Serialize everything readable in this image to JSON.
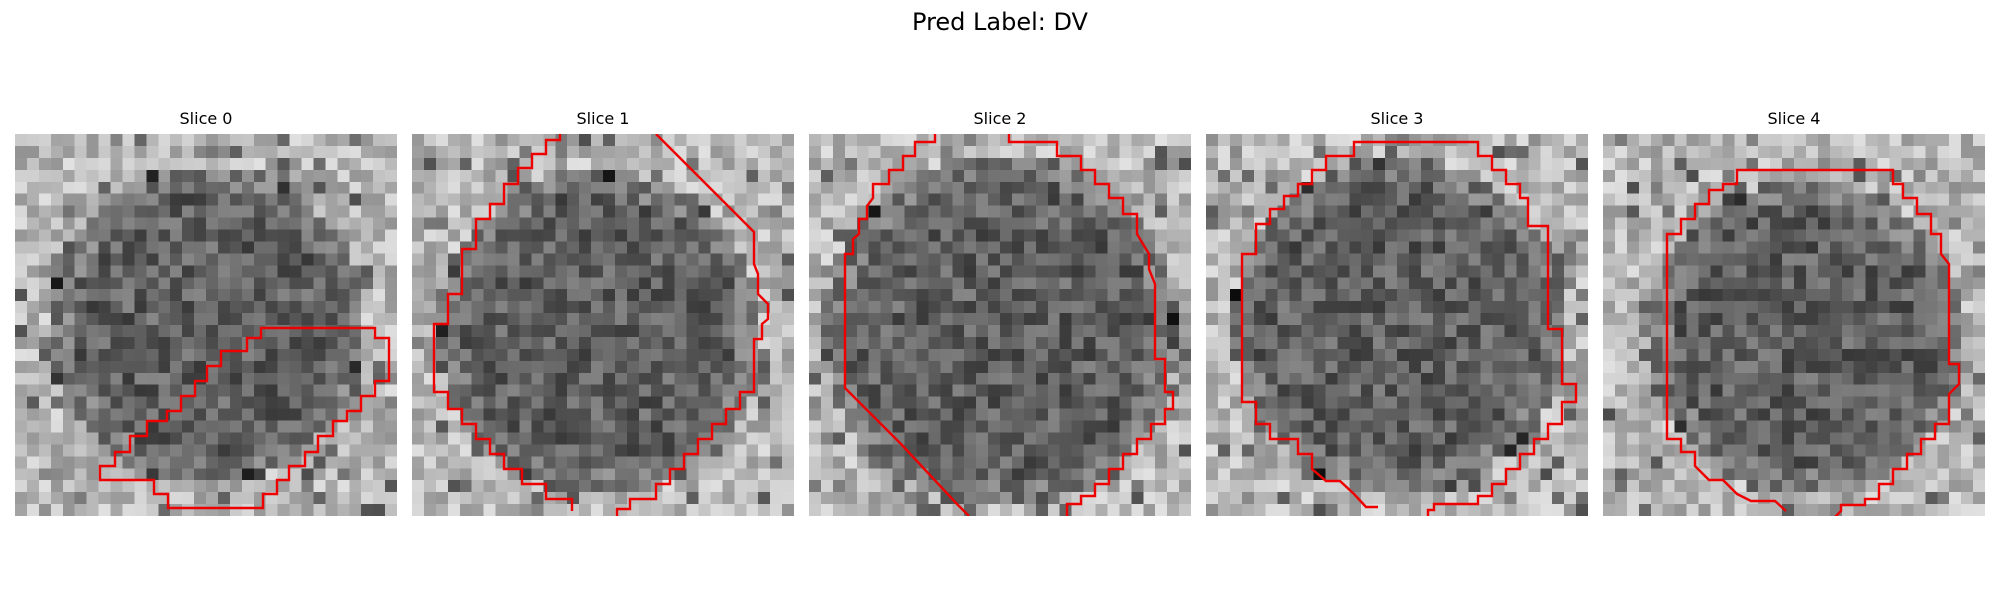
{
  "suptitle": "Pred Label: DV",
  "panels": [
    {
      "title": "Slice 0",
      "region": "dark-circular-cell"
    },
    {
      "title": "Slice 1",
      "region": "dark-circular-cell"
    },
    {
      "title": "Slice 2",
      "region": "dark-circular-cell"
    },
    {
      "title": "Slice 3",
      "region": "dark-circular-cell"
    },
    {
      "title": "Slice 4",
      "region": "dark-circular-cell"
    }
  ],
  "colors": {
    "contour": "#ee0000",
    "background": "#ffffff"
  },
  "colormap": "grayscale"
}
